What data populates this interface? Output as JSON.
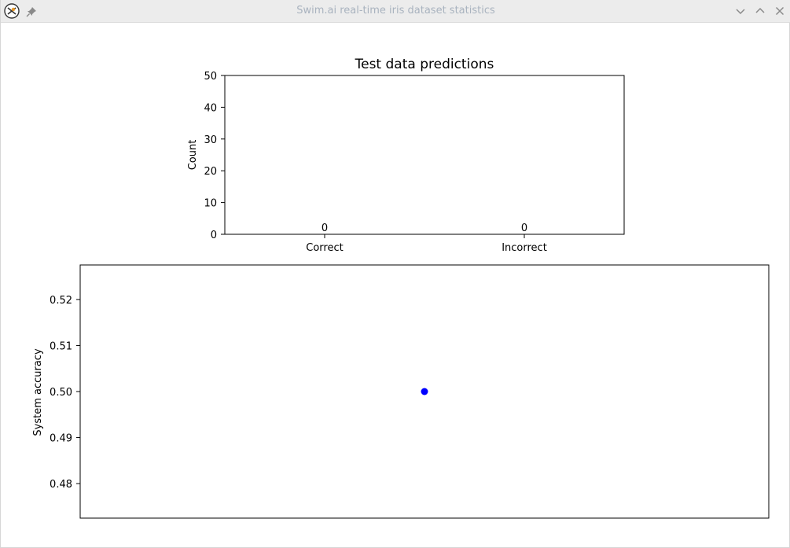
{
  "window": {
    "title": "Swim.ai real-time iris dataset statistics",
    "icons": {
      "app": "app-logo-icon",
      "pin": "pin-icon",
      "minimize": "chevron-down-icon",
      "maximize": "chevron-up-icon",
      "close": "close-icon"
    }
  },
  "chart_data": [
    {
      "type": "bar",
      "title": "Test data predictions",
      "xlabel": "",
      "ylabel": "Count",
      "categories": [
        "Correct",
        "Incorrect"
      ],
      "values": [
        0,
        0
      ],
      "data_labels": [
        "0",
        "0"
      ],
      "ylim": [
        0,
        50
      ],
      "yticks": [
        0,
        10,
        20,
        30,
        40,
        50
      ],
      "grid": false
    },
    {
      "type": "scatter",
      "title": "",
      "xlabel": "",
      "ylabel": "System accuracy",
      "points": [
        {
          "x": 0,
          "y": 0.5
        }
      ],
      "xlim": [
        -0.055,
        0.055
      ],
      "ylim": [
        0.4725,
        0.5275
      ],
      "yticks": [
        0.48,
        0.49,
        0.5,
        0.51,
        0.52
      ],
      "ytick_labels": [
        "0.48",
        "0.49",
        "0.50",
        "0.51",
        "0.52"
      ],
      "xticks_visible": false,
      "point_color": "#0000ff",
      "grid": false
    }
  ]
}
